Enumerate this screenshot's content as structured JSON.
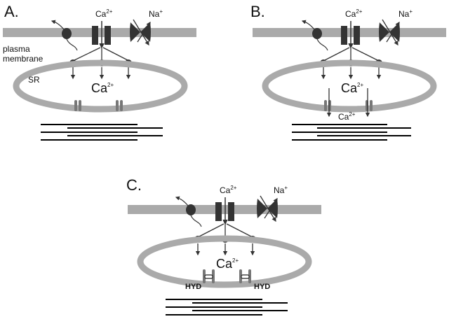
{
  "panels": [
    {
      "letter": "A.",
      "ca_label": "Ca",
      "ca_charge": "2+",
      "na_label": "Na",
      "na_charge": "+",
      "membrane_line1": "plasma",
      "membrane_line2": "membrane",
      "sr_label": "SR",
      "sr_ca_label": "Ca",
      "sr_ca_charge": "2+",
      "release_ca_label": "",
      "release_ca_charge": "",
      "hyd_label": ""
    },
    {
      "letter": "B.",
      "ca_label": "Ca",
      "ca_charge": "2+",
      "na_label": "Na",
      "na_charge": "+",
      "membrane_line1": "",
      "membrane_line2": "",
      "sr_label": "",
      "sr_ca_label": "Ca",
      "sr_ca_charge": "2+",
      "release_ca_label": "Ca",
      "release_ca_charge": "2+",
      "hyd_label": ""
    },
    {
      "letter": "C.",
      "ca_label": "Ca",
      "ca_charge": "2+",
      "na_label": "Na",
      "na_charge": "+",
      "membrane_line1": "",
      "membrane_line2": "",
      "sr_label": "",
      "sr_ca_label": "Ca",
      "sr_ca_charge": "2+",
      "release_ca_label": "",
      "release_ca_charge": "",
      "hyd_label": "HYD"
    }
  ],
  "colors": {
    "membrane": "#aaaaaa",
    "channel": "#333333",
    "arrow": "#333333",
    "filament": "#000000",
    "background": "#ffffff"
  },
  "icons": {
    "ca_channel": "ca-channel-icon",
    "na_exchanger": "na-exchanger-icon",
    "receptor": "receptor-icon",
    "ryanodine_receptor": "ryanodine-receptor-icon"
  }
}
